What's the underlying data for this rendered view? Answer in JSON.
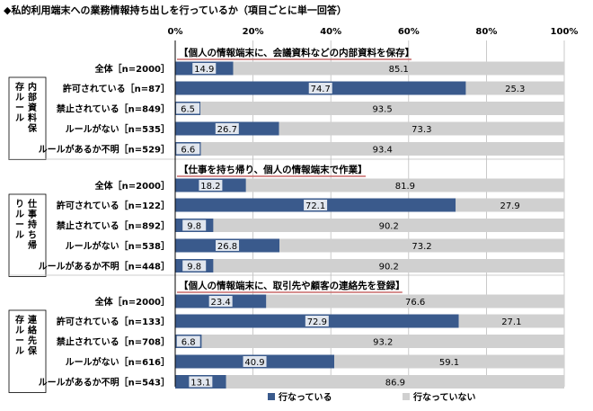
{
  "title": "◆私的利用端末への業務情報持ち出しを行っているか（項目ごとに単一回答）",
  "chart_data": {
    "type": "bar",
    "stacked": true,
    "orientation": "horizontal",
    "xlim": [
      0,
      100
    ],
    "x_ticks": [
      "0%",
      "20%",
      "40%",
      "60%",
      "80%",
      "100%"
    ],
    "grid": true,
    "legend_position": "bottom-right",
    "colors": {
      "doing": "#3a5a8c",
      "not_doing": "#d0d0d0"
    },
    "series_names": [
      "行なっている",
      "行なっていない"
    ],
    "sections": [
      {
        "heading": "【個人の情報端末に、会議資料などの内部資料を保存】",
        "group_label": "内部資料保存ルール",
        "rows": [
          {
            "label": "全体［n=2000］",
            "doing": 14.9,
            "not_doing": 85.1,
            "grouped": false
          },
          {
            "label": "許可されている［n=87］",
            "doing": 74.7,
            "not_doing": 25.3,
            "grouped": true
          },
          {
            "label": "禁止されている［n=849］",
            "doing": 6.5,
            "not_doing": 93.5,
            "grouped": true
          },
          {
            "label": "ルールがない［n=535］",
            "doing": 26.7,
            "not_doing": 73.3,
            "grouped": true
          },
          {
            "label": "ルールがあるか不明［n=529］",
            "doing": 6.6,
            "not_doing": 93.4,
            "grouped": true
          }
        ]
      },
      {
        "heading": "【仕事を持ち帰り、個人の情報端末で作業】",
        "group_label": "仕事持ち帰りルール",
        "rows": [
          {
            "label": "全体［n=2000］",
            "doing": 18.2,
            "not_doing": 81.9,
            "grouped": false
          },
          {
            "label": "許可されている［n=122］",
            "doing": 72.1,
            "not_doing": 27.9,
            "grouped": true
          },
          {
            "label": "禁止されている［n=892］",
            "doing": 9.8,
            "not_doing": 90.2,
            "grouped": true
          },
          {
            "label": "ルールがない［n=538］",
            "doing": 26.8,
            "not_doing": 73.2,
            "grouped": true
          },
          {
            "label": "ルールがあるか不明［n=448］",
            "doing": 9.8,
            "not_doing": 90.2,
            "grouped": true
          }
        ]
      },
      {
        "heading": "【個人の情報端末に、取引先や顧客の連絡先を登録】",
        "group_label": "連絡先保存ルール",
        "rows": [
          {
            "label": "全体［n=2000］",
            "doing": 23.4,
            "not_doing": 76.6,
            "grouped": false
          },
          {
            "label": "許可されている［n=133］",
            "doing": 72.9,
            "not_doing": 27.1,
            "grouped": true
          },
          {
            "label": "禁止されている［n=708］",
            "doing": 6.8,
            "not_doing": 93.2,
            "grouped": true
          },
          {
            "label": "ルールがない［n=616］",
            "doing": 40.9,
            "not_doing": 59.1,
            "grouped": true
          },
          {
            "label": "ルールがあるか不明［n=543］",
            "doing": 13.1,
            "not_doing": 86.9,
            "grouped": true
          }
        ]
      }
    ]
  }
}
